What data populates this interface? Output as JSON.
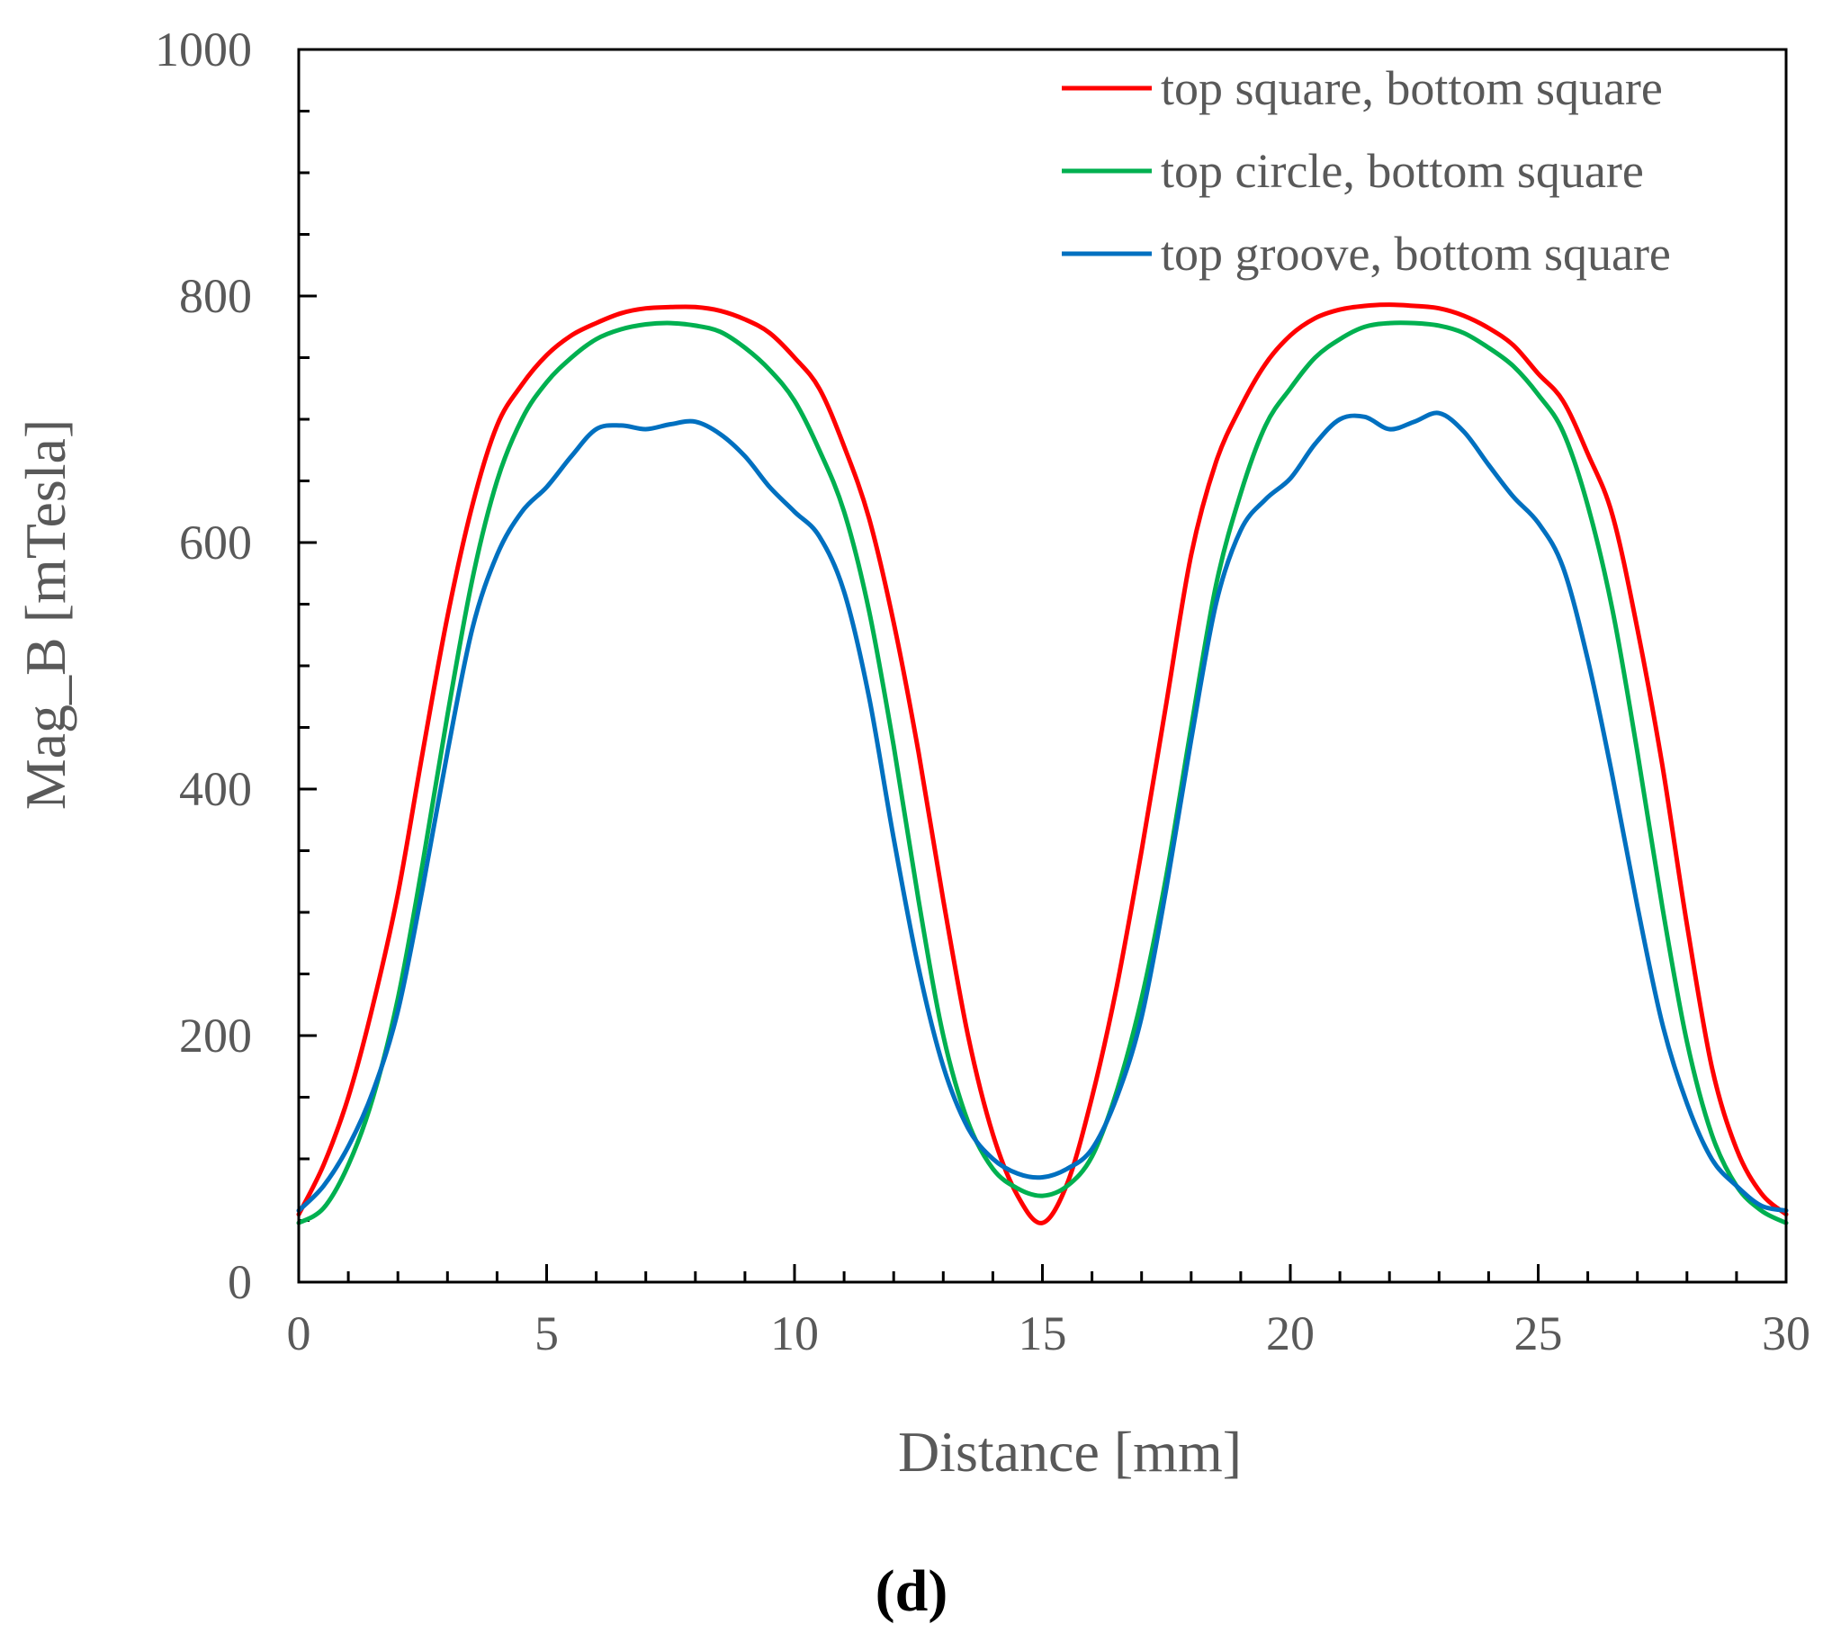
{
  "chart_data": {
    "type": "line",
    "title": "",
    "xlabel": "Distance [mm]",
    "ylabel": "Mag_B [mTesla]",
    "xlim": [
      0,
      30
    ],
    "ylim": [
      0,
      1000
    ],
    "xticks": [
      0,
      5,
      10,
      15,
      20,
      25,
      30
    ],
    "yticks": [
      0,
      200,
      400,
      600,
      800,
      1000
    ],
    "x_minor_step": 1,
    "y_minor_step": 50,
    "grid": false,
    "legend_position": "top-right",
    "panel_label": "(d)",
    "series": [
      {
        "name": "top square, bottom square",
        "color": "#ff0000",
        "x": [
          0,
          0.5,
          1,
          1.5,
          2,
          2.5,
          3,
          3.5,
          4,
          4.5,
          5,
          5.5,
          6,
          6.5,
          7,
          7.5,
          8,
          8.5,
          9,
          9.5,
          10,
          10.5,
          11,
          11.5,
          12,
          12.5,
          13,
          13.5,
          14,
          14.5,
          15,
          15.5,
          16,
          16.5,
          17,
          17.5,
          18,
          18.5,
          19,
          19.5,
          20,
          20.5,
          21,
          21.5,
          22,
          22.5,
          23,
          23.5,
          24,
          24.5,
          25,
          25.5,
          26,
          26.5,
          27,
          27.5,
          28,
          28.5,
          29,
          29.5,
          30
        ],
        "y": [
          55,
          95,
          150,
          225,
          315,
          430,
          540,
          630,
          695,
          728,
          752,
          768,
          778,
          786,
          790,
          791,
          791,
          788,
          781,
          770,
          750,
          725,
          678,
          620,
          535,
          430,
          310,
          200,
          120,
          70,
          48,
          80,
          150,
          240,
          350,
          470,
          590,
          665,
          710,
          745,
          768,
          782,
          789,
          792,
          793,
          792,
          790,
          784,
          774,
          760,
          737,
          715,
          672,
          622,
          530,
          420,
          290,
          175,
          108,
          72,
          55
        ]
      },
      {
        "name": "top circle, bottom square",
        "color": "#00b050",
        "x": [
          0,
          0.5,
          1,
          1.5,
          2,
          2.5,
          3,
          3.5,
          4,
          4.5,
          5,
          5.5,
          6,
          6.5,
          7,
          7.5,
          8,
          8.5,
          9,
          9.5,
          10,
          10.5,
          11,
          11.5,
          12,
          12.5,
          13,
          13.5,
          14,
          14.5,
          15,
          15.5,
          16,
          16.5,
          17,
          17.5,
          18,
          18.5,
          19,
          19.5,
          20,
          20.5,
          21,
          21.5,
          22,
          22.5,
          23,
          23.5,
          24,
          24.5,
          25,
          25.5,
          26,
          26.5,
          27,
          27.5,
          28,
          28.5,
          29,
          29.5,
          30
        ],
        "y": [
          48,
          60,
          95,
          150,
          230,
          340,
          460,
          570,
          650,
          700,
          730,
          750,
          765,
          773,
          777,
          778,
          776,
          771,
          758,
          740,
          715,
          675,
          625,
          545,
          435,
          310,
          200,
          130,
          92,
          76,
          70,
          78,
          102,
          155,
          230,
          330,
          450,
          565,
          640,
          695,
          725,
          750,
          765,
          775,
          778,
          778,
          776,
          770,
          758,
          743,
          720,
          690,
          630,
          545,
          430,
          305,
          195,
          120,
          78,
          58,
          48
        ]
      },
      {
        "name": "top groove, bottom square",
        "color": "#0070c0",
        "x": [
          0,
          0.5,
          1,
          1.5,
          2,
          2.5,
          3,
          3.5,
          4,
          4.5,
          5,
          5.5,
          6,
          6.5,
          7,
          7.5,
          8,
          8.5,
          9,
          9.5,
          10,
          10.5,
          11,
          11.5,
          12,
          12.5,
          13,
          13.5,
          14,
          14.5,
          15,
          15.5,
          16,
          16.5,
          17,
          17.5,
          18,
          18.5,
          19,
          19.5,
          20,
          20.5,
          21,
          21.5,
          22,
          22.5,
          23,
          23.5,
          24,
          24.5,
          25,
          25.5,
          26,
          26.5,
          27,
          27.5,
          28,
          28.5,
          29,
          29.5,
          30
        ],
        "y": [
          58,
          78,
          110,
          155,
          220,
          320,
          430,
          530,
          590,
          625,
          645,
          670,
          692,
          695,
          692,
          696,
          698,
          688,
          670,
          645,
          625,
          605,
          560,
          475,
          360,
          255,
          175,
          125,
          100,
          88,
          85,
          92,
          108,
          150,
          215,
          320,
          440,
          550,
          610,
          635,
          652,
          680,
          700,
          702,
          692,
          698,
          705,
          690,
          663,
          637,
          616,
          580,
          505,
          410,
          305,
          210,
          145,
          100,
          78,
          62,
          58
        ]
      }
    ]
  }
}
